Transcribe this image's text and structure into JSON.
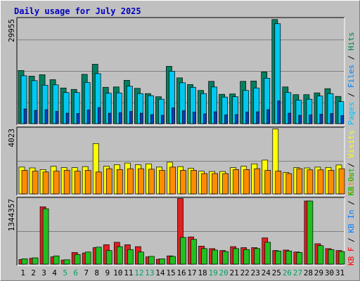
{
  "chart_data": {
    "type": "bar",
    "title": "Daily usage for July 2025",
    "categories": [
      "1",
      "2",
      "3",
      "4",
      "5",
      "6",
      "7",
      "8",
      "9",
      "10",
      "11",
      "12",
      "13",
      "14",
      "15",
      "16",
      "17",
      "18",
      "19",
      "20",
      "21",
      "22",
      "23",
      "24",
      "25",
      "26",
      "27",
      "28",
      "29",
      "30",
      "31"
    ],
    "weekend_days": [
      "5",
      "6",
      "12",
      "13",
      "19",
      "20",
      "26",
      "27"
    ],
    "panels": [
      {
        "name": "pages-files-hits",
        "max_label": "29955",
        "ylim": [
          0,
          29955
        ],
        "legend": [
          {
            "label": "Pages",
            "color": "#00c0ff"
          },
          {
            "label": "Files",
            "color": "#0080ff"
          },
          {
            "label": "Hits",
            "color": "#008040"
          }
        ],
        "series": [
          {
            "name": "Hits",
            "color": "#008060",
            "values": [
              15200,
              13600,
              14000,
              12600,
              10200,
              9800,
              14100,
              17000,
              10400,
              10500,
              12400,
              10100,
              8600,
              7700,
              16400,
              13100,
              11200,
              9500,
              12100,
              8400,
              8500,
              12100,
              12200,
              14800,
              29800,
              10500,
              8300,
              8300,
              8800,
              10000,
              7800
            ]
          },
          {
            "name": "Pages",
            "color": "#00c8f0",
            "values": [
              13700,
              12300,
              11000,
              11100,
              8900,
              8900,
              11800,
              14300,
              8700,
              8800,
              10700,
              8600,
              8000,
              7000,
              15000,
              11700,
              10400,
              8600,
              10500,
              7600,
              7700,
              9500,
              10200,
              13000,
              28600,
              8900,
              6700,
              7000,
              7900,
              8600,
              6300
            ]
          },
          {
            "name": "Files",
            "color": "#0040c0",
            "values": [
              4200,
              3800,
              4000,
              3500,
              3000,
              2900,
              3900,
              4600,
              3000,
              3100,
              3500,
              3000,
              2600,
              2400,
              4500,
              3700,
              3300,
              2800,
              3400,
              2500,
              2600,
              3300,
              3400,
              4000,
              6500,
              3000,
              2400,
              2500,
              2700,
              2900,
              2300
            ]
          }
        ]
      },
      {
        "name": "visits-sites",
        "max_label": "4023",
        "ylim": [
          0,
          4023
        ],
        "legend": [
          {
            "label": "Sites",
            "color": "#ff8000"
          },
          {
            "label": "Visits",
            "color": "#ffff00"
          }
        ],
        "series": [
          {
            "name": "Visits",
            "color": "#ffff00",
            "values": [
              1650,
              1600,
              1500,
              1700,
              1620,
              1620,
              1680,
              3100,
              1700,
              1800,
              1900,
              1800,
              1850,
              1650,
              1950,
              1680,
              1580,
              1400,
              1380,
              1380,
              1620,
              1700,
              1850,
              2080,
              4000,
              1320,
              1620,
              1600,
              1650,
              1630,
              1780
            ]
          },
          {
            "name": "Sites",
            "color": "#ff8c00",
            "values": [
              1450,
              1400,
              1350,
              1400,
              1450,
              1400,
              1450,
              1350,
              1550,
              1500,
              1550,
              1550,
              1520,
              1450,
              1650,
              1450,
              1450,
              1250,
              1250,
              1250,
              1500,
              1500,
              1550,
              1450,
              1400,
              1250,
              1550,
              1480,
              1480,
              1450,
              1550
            ]
          }
        ]
      },
      {
        "name": "kb-in-out",
        "max_label": "1344357",
        "ylim": [
          0,
          1344357
        ],
        "legend": [
          {
            "label": "KB F",
            "color": "#ff0000"
          },
          {
            "label": "KB In",
            "color": "#0080ff"
          },
          {
            "label": "KB Out",
            "color": "#00c000"
          }
        ],
        "series": [
          {
            "name": "KB F",
            "color": "#e02020",
            "values": [
              95000,
              120000,
              1180000,
              150000,
              85000,
              240000,
              230000,
              340000,
              400000,
              450000,
              400000,
              360000,
              150000,
              100000,
              170000,
              1350000,
              560000,
              370000,
              320000,
              280000,
              360000,
              340000,
              340000,
              540000,
              280000,
              290000,
              250000,
              1300000,
              420000,
              320000,
              280000
            ]
          },
          {
            "name": "KB Out",
            "color": "#20c020",
            "values": [
              110000,
              130000,
              1140000,
              170000,
              90000,
              200000,
              250000,
              350000,
              280000,
              360000,
              300000,
              250000,
              160000,
              110000,
              160000,
              550000,
              510000,
              320000,
              290000,
              260000,
              320000,
              300000,
              320000,
              450000,
              270000,
              270000,
              240000,
              1300000,
              380000,
              300000,
              260000
            ]
          }
        ]
      }
    ]
  }
}
